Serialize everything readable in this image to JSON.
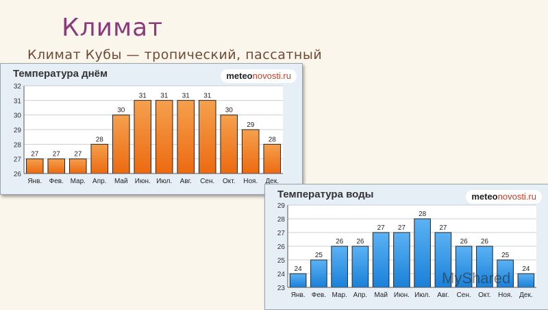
{
  "slide": {
    "title": "Климат",
    "subtitle": "Климат Кубы — тропический, пассатный"
  },
  "colors": {
    "title": "#8b3a7a",
    "subtitle": "#6e4a35",
    "day_bar": "#ec6a10",
    "day_bar_light": "#f5a04e",
    "water_bar": "#1a80d8",
    "water_bar_light": "#5cb2f4",
    "panel_bg": "#e6eef6"
  },
  "logo": {
    "bold": "meteo",
    "rest": "novosti.ru"
  },
  "watermark": "MyShared",
  "chart_data": [
    {
      "type": "bar",
      "title": "Температура днём",
      "categories": [
        "Янв.",
        "Фев.",
        "Мар.",
        "Апр.",
        "Май",
        "Июн.",
        "Июл.",
        "Авг.",
        "Сен.",
        "Окт.",
        "Ноя.",
        "Дек."
      ],
      "values": [
        27,
        27,
        27,
        28,
        30,
        31,
        31,
        31,
        31,
        30,
        29,
        28
      ],
      "ylim": [
        26,
        32
      ],
      "yticks": [
        26,
        27,
        28,
        29,
        30,
        31,
        32
      ],
      "grid": true
    },
    {
      "type": "bar",
      "title": "Температура воды",
      "categories": [
        "Янв.",
        "Фев.",
        "Мар.",
        "Апр.",
        "Май",
        "Июн.",
        "Июл.",
        "Авг.",
        "Сен.",
        "Окт.",
        "Ноя.",
        "Дек."
      ],
      "values": [
        24,
        25,
        26,
        26,
        27,
        27,
        28,
        27,
        26,
        26,
        25,
        24
      ],
      "ylim": [
        23,
        29
      ],
      "yticks": [
        23,
        24,
        25,
        26,
        27,
        28,
        29
      ],
      "grid": true
    }
  ]
}
